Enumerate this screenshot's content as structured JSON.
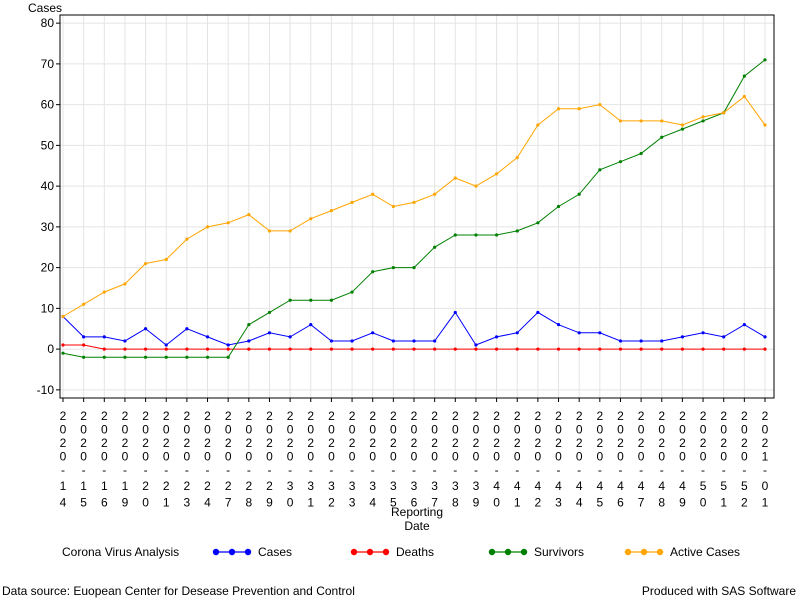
{
  "chart_data": {
    "type": "line",
    "title": "",
    "ylabel": "Cases",
    "xlabel_lines": [
      "Reporting",
      "Date"
    ],
    "ylim": [
      -12,
      82
    ],
    "yticks": [
      -10,
      0,
      10,
      20,
      30,
      40,
      50,
      60,
      70,
      80
    ],
    "grid": true,
    "legend_title": "Corona Virus Analysis",
    "legend_position": "bottom",
    "categories": [
      "20200314",
      "20200315",
      "20200316",
      "20200319",
      "20200320",
      "20200321",
      "20200323",
      "20200324",
      "20200327",
      "20200328",
      "20200329",
      "20200330",
      "20200331",
      "20200332",
      "20200333",
      "20200334",
      "20200335",
      "20200336",
      "20200337",
      "20200338",
      "20200339",
      "20200340",
      "20200341",
      "20200342",
      "20200343",
      "20200344",
      "20200345",
      "20200346",
      "20200347",
      "20200348",
      "20200349",
      "20200350",
      "20200351",
      "20200352",
      "20210301"
    ],
    "series": [
      {
        "name": "Cases",
        "color": "#0000ff",
        "values": [
          8,
          3,
          3,
          2,
          5,
          1,
          5,
          3,
          1,
          2,
          4,
          3,
          6,
          2,
          2,
          4,
          2,
          2,
          2,
          9,
          1,
          3,
          4,
          9,
          6,
          4,
          4,
          2,
          2,
          2,
          3,
          4,
          3,
          6,
          3
        ]
      },
      {
        "name": "Deaths",
        "color": "#ff0000",
        "values": [
          1,
          1,
          0,
          0,
          0,
          0,
          0,
          0,
          0,
          0,
          0,
          0,
          0,
          0,
          0,
          0,
          0,
          0,
          0,
          0,
          0,
          0,
          0,
          0,
          0,
          0,
          0,
          0,
          0,
          0,
          0,
          0,
          0,
          0,
          0
        ]
      },
      {
        "name": "Survivors",
        "color": "#008000",
        "values": [
          -1,
          -2,
          -2,
          -2,
          -2,
          -2,
          -2,
          -2,
          -2,
          6,
          9,
          12,
          12,
          12,
          14,
          19,
          20,
          20,
          25,
          28,
          28,
          28,
          29,
          31,
          35,
          38,
          44,
          46,
          48,
          52,
          54,
          56,
          58,
          67,
          71
        ]
      },
      {
        "name": "Active Cases",
        "color": "#ffa500",
        "values": [
          8,
          11,
          14,
          16,
          21,
          22,
          27,
          30,
          31,
          33,
          29,
          29,
          32,
          34,
          36,
          38,
          35,
          36,
          38,
          42,
          40,
          43,
          47,
          55,
          59,
          59,
          60,
          56,
          56,
          56,
          55,
          57,
          58,
          62,
          55
        ]
      }
    ]
  },
  "footer": {
    "source": "Data source: Euopean Center for Desease Prevention and Control",
    "produced": "Produced with SAS Software"
  }
}
